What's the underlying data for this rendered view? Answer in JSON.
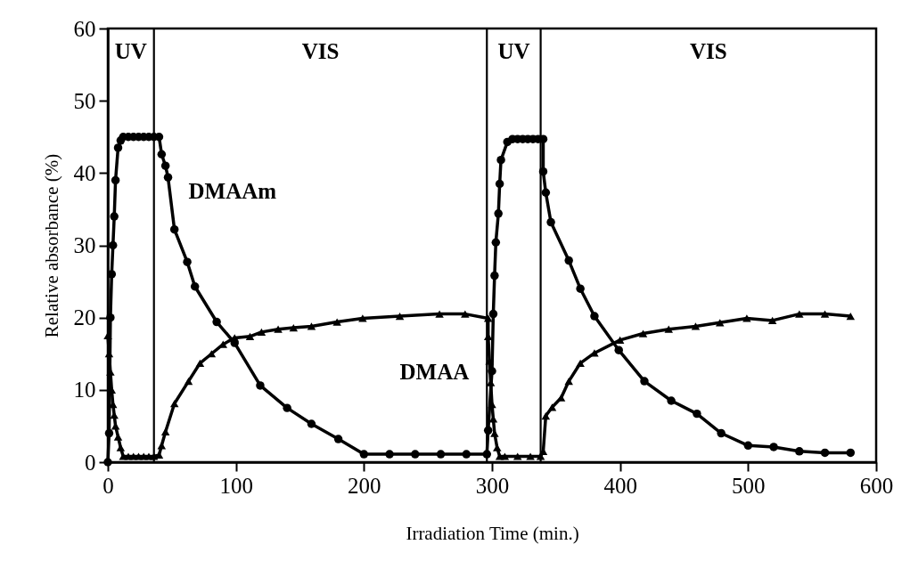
{
  "chart_data": {
    "type": "line",
    "xlabel": "Irradiation Time (min.)",
    "ylabel": "Relative absorbance (%)",
    "xlim": [
      0,
      600
    ],
    "xticks": [
      0,
      100,
      200,
      300,
      400,
      500,
      600
    ],
    "ylim": [
      0,
      60
    ],
    "yticks": [
      0,
      10,
      20,
      30,
      40,
      50,
      60
    ],
    "grid": false,
    "line_style": "solid",
    "ref_lines": [
      {
        "axis": "x",
        "value": 36
      },
      {
        "axis": "x",
        "value": 296
      },
      {
        "axis": "x",
        "value": 338
      }
    ],
    "annotations": [
      "UV",
      "VIS",
      "UV",
      "VIS"
    ],
    "series": [
      {
        "name": "DMAAm",
        "color": "#000000",
        "marker": "circle",
        "x": [
          0,
          1,
          2,
          3,
          4,
          5,
          6,
          8,
          10,
          12,
          16,
          20,
          24,
          28,
          32,
          36,
          40,
          42,
          45,
          47,
          52,
          62,
          68,
          85,
          99,
          119,
          140,
          159,
          180,
          200,
          220,
          240,
          260,
          280,
          296,
          297,
          300,
          301,
          302,
          303,
          305,
          306,
          307,
          312,
          316,
          320,
          324,
          328,
          332,
          336,
          340,
          340,
          342,
          346,
          360,
          369,
          380,
          399,
          419,
          440,
          460,
          479,
          500,
          520,
          540,
          560,
          580
        ],
        "values": [
          0,
          4,
          20,
          26,
          30,
          34,
          39,
          43.5,
          44.5,
          45,
          45,
          45,
          45,
          45,
          45,
          45,
          45,
          42.6,
          41,
          39.4,
          32.2,
          27.7,
          24.3,
          19.4,
          16.5,
          10.6,
          7.5,
          5.3,
          3.2,
          1.1,
          1.1,
          1.1,
          1.1,
          1.1,
          1.1,
          4.4,
          12.6,
          20.5,
          25.8,
          30.4,
          34.4,
          38.5,
          41.8,
          44.3,
          44.7,
          44.7,
          44.7,
          44.7,
          44.7,
          44.7,
          44.7,
          40.2,
          37.3,
          33.2,
          27.9,
          24,
          20.2,
          15.5,
          11.2,
          8.5,
          6.7,
          4,
          2.3,
          2.1,
          1.5,
          1.3,
          1.3
        ]
      },
      {
        "name": "DMAA",
        "color": "#000000",
        "marker": "triangle",
        "x": [
          0,
          1,
          2,
          3,
          4,
          5,
          6,
          8,
          10,
          12,
          16,
          20,
          24,
          28,
          32,
          36,
          40,
          42,
          45,
          52,
          63,
          72,
          81,
          90,
          99,
          111,
          120,
          133,
          145,
          159,
          179,
          199,
          228,
          259,
          279,
          297,
          297,
          298,
          299,
          300,
          301,
          302,
          304,
          306,
          310,
          320,
          330,
          338,
          340,
          342,
          347,
          354,
          360,
          369,
          380,
          400,
          418,
          438,
          459,
          478,
          499,
          519,
          540,
          560,
          580
        ],
        "values": [
          17.5,
          15,
          12.5,
          10,
          8,
          6.5,
          5,
          3.5,
          2,
          0.8,
          0.8,
          0.8,
          0.8,
          0.8,
          0.8,
          0.8,
          1,
          2.3,
          4.2,
          8.1,
          11.2,
          13.7,
          15,
          16.3,
          17.2,
          17.4,
          18,
          18.4,
          18.6,
          18.8,
          19.4,
          19.9,
          20.2,
          20.5,
          20.5,
          19.9,
          17.4,
          14,
          11,
          8,
          6,
          4,
          2,
          0.8,
          0.8,
          0.8,
          0.8,
          0.8,
          1.5,
          6.4,
          7.6,
          8.9,
          11.2,
          13.7,
          15.1,
          16.9,
          17.8,
          18.4,
          18.8,
          19.3,
          19.9,
          19.6,
          20.5,
          20.5,
          20.2
        ]
      }
    ]
  }
}
